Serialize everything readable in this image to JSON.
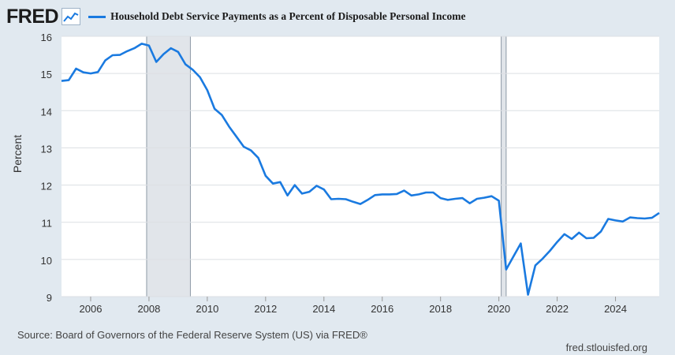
{
  "header": {
    "logo_text": "FRED",
    "logo_icon": "line-chart-icon",
    "legend_label": "Household Debt Service Payments as a Percent of Disposable Personal Income",
    "line_color": "#1a7ae0"
  },
  "footer": {
    "source": "Source: Board of Governors of the Federal Reserve System (US) via FRED®",
    "site": "fred.stlouisfed.org"
  },
  "chart_data": {
    "type": "line",
    "title": "Household Debt Service Payments as a Percent of Disposable Personal Income",
    "xlabel": "",
    "ylabel": "Percent",
    "xlim": [
      2005.0,
      2025.5
    ],
    "ylim": [
      9,
      16
    ],
    "yticks": [
      9,
      10,
      11,
      12,
      13,
      14,
      15,
      16
    ],
    "xticks": [
      2006,
      2008,
      2010,
      2012,
      2014,
      2016,
      2018,
      2020,
      2022,
      2024
    ],
    "grid": true,
    "recessions": [
      [
        2007.92,
        2009.42
      ],
      [
        2020.08,
        2020.25
      ]
    ],
    "series": [
      {
        "name": "Household Debt Service Payments as a Percent of Disposable Personal Income",
        "x": [
          2005.0,
          2005.25,
          2005.5,
          2005.75,
          2006.0,
          2006.25,
          2006.5,
          2006.75,
          2007.0,
          2007.25,
          2007.5,
          2007.75,
          2008.0,
          2008.25,
          2008.5,
          2008.75,
          2009.0,
          2009.25,
          2009.5,
          2009.75,
          2010.0,
          2010.25,
          2010.5,
          2010.75,
          2011.0,
          2011.25,
          2011.5,
          2011.75,
          2012.0,
          2012.25,
          2012.5,
          2012.75,
          2013.0,
          2013.25,
          2013.5,
          2013.75,
          2014.0,
          2014.25,
          2014.5,
          2014.75,
          2015.0,
          2015.25,
          2015.5,
          2015.75,
          2016.0,
          2016.25,
          2016.5,
          2016.75,
          2017.0,
          2017.25,
          2017.5,
          2017.75,
          2018.0,
          2018.25,
          2018.5,
          2018.75,
          2019.0,
          2019.25,
          2019.5,
          2019.75,
          2020.0,
          2020.25,
          2020.5,
          2020.75,
          2021.0,
          2021.25,
          2021.5,
          2021.75,
          2022.0,
          2022.25,
          2022.5,
          2022.75,
          2023.0,
          2023.25,
          2023.5,
          2023.75,
          2024.0,
          2024.25,
          2024.5,
          2024.75,
          2025.0,
          2025.25,
          2025.5
        ],
        "values": [
          14.8,
          14.82,
          15.13,
          15.03,
          15.0,
          15.04,
          15.35,
          15.49,
          15.5,
          15.6,
          15.68,
          15.8,
          15.75,
          15.31,
          15.52,
          15.68,
          15.58,
          15.25,
          15.1,
          14.9,
          14.55,
          14.05,
          13.88,
          13.57,
          13.3,
          13.03,
          12.93,
          12.73,
          12.25,
          12.04,
          12.08,
          11.72,
          12.0,
          11.77,
          11.82,
          11.98,
          11.88,
          11.62,
          11.63,
          11.62,
          11.55,
          11.49,
          11.6,
          11.73,
          11.75,
          11.75,
          11.76,
          11.85,
          11.72,
          11.75,
          11.8,
          11.8,
          11.65,
          11.6,
          11.63,
          11.65,
          11.51,
          11.63,
          11.66,
          11.7,
          11.58,
          9.73,
          10.08,
          10.43,
          9.05,
          9.84,
          10.02,
          10.23,
          10.47,
          10.68,
          10.55,
          10.72,
          10.57,
          10.58,
          10.75,
          11.09,
          11.05,
          11.02,
          11.13,
          11.11,
          11.1,
          11.12,
          11.25
        ]
      }
    ]
  }
}
